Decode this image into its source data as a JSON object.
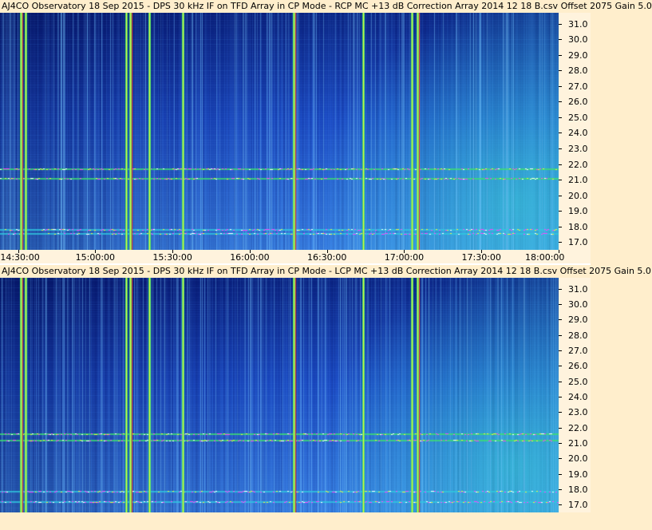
{
  "chart_data": [
    {
      "type": "heatmap",
      "title": "AJ4CO Observatory 18 Sep 2015 - DPS 30 kHz IF on TFD Array in CP Mode - RCP  MC +13 dB  Correction Array 2014 12 18 B.csv  Offset 2075  Gain 5.0",
      "polarization": "RCP",
      "x_ticks": [
        "14:30:00",
        "15:00:00",
        "15:30:00",
        "16:00:00",
        "16:30:00",
        "17:00:00",
        "17:30:00",
        "18:00:00"
      ],
      "y_ticks": [
        "31.0",
        "30.0",
        "29.0",
        "28.0",
        "27.0",
        "26.0",
        "25.0",
        "24.0",
        "23.0",
        "22.0",
        "21.0",
        "20.0",
        "19.0",
        "18.0",
        "17.0"
      ],
      "xlim": [
        "14:23:00",
        "18:00:00"
      ],
      "ylim": [
        16.5,
        31.7
      ],
      "colormap": [
        "#0a1f80",
        "#1c4ac8",
        "#3b82e8",
        "#30c8e0",
        "#3fe070",
        "#f0f040",
        "#ff3030",
        "#ff40ff"
      ],
      "persistent_emission_mhz": [
        17.6,
        17.85,
        21.7,
        21.1
      ],
      "strong_interference_times": [
        "14:31:00",
        "14:33:00",
        "15:12:00",
        "15:13:30",
        "15:21:00",
        "15:34:00",
        "16:17:00",
        "16:44:00",
        "17:03:00",
        "17:05:00"
      ]
    },
    {
      "type": "heatmap",
      "title": "AJ4CO Observatory 18 Sep 2015 - DPS 30 kHz IF on TFD Array in CP Mode - LCP  MC +13 dB  Correction Array 2014 12 18 B.csv  Offset 2075  Gain 5.0",
      "polarization": "LCP",
      "x_ticks": [],
      "y_ticks": [
        "31.0",
        "30.0",
        "29.0",
        "28.0",
        "27.0",
        "26.0",
        "25.0",
        "24.0",
        "23.0",
        "22.0",
        "21.0",
        "20.0",
        "19.0",
        "18.0",
        "17.0"
      ],
      "xlim": [
        "14:23:00",
        "18:00:00"
      ],
      "ylim": [
        16.5,
        31.7
      ],
      "colormap": [
        "#0a1f80",
        "#1c4ac8",
        "#3b82e8",
        "#30c8e0",
        "#3fe070",
        "#f0f040",
        "#ff3030",
        "#ff40ff"
      ],
      "persistent_emission_mhz": [
        17.9,
        17.2,
        21.6,
        21.2
      ],
      "strong_interference_times": [
        "14:31:00",
        "14:33:00",
        "15:12:00",
        "15:13:30",
        "15:21:00",
        "15:34:00",
        "16:17:00",
        "16:44:00",
        "17:03:00",
        "17:05:00"
      ]
    }
  ]
}
